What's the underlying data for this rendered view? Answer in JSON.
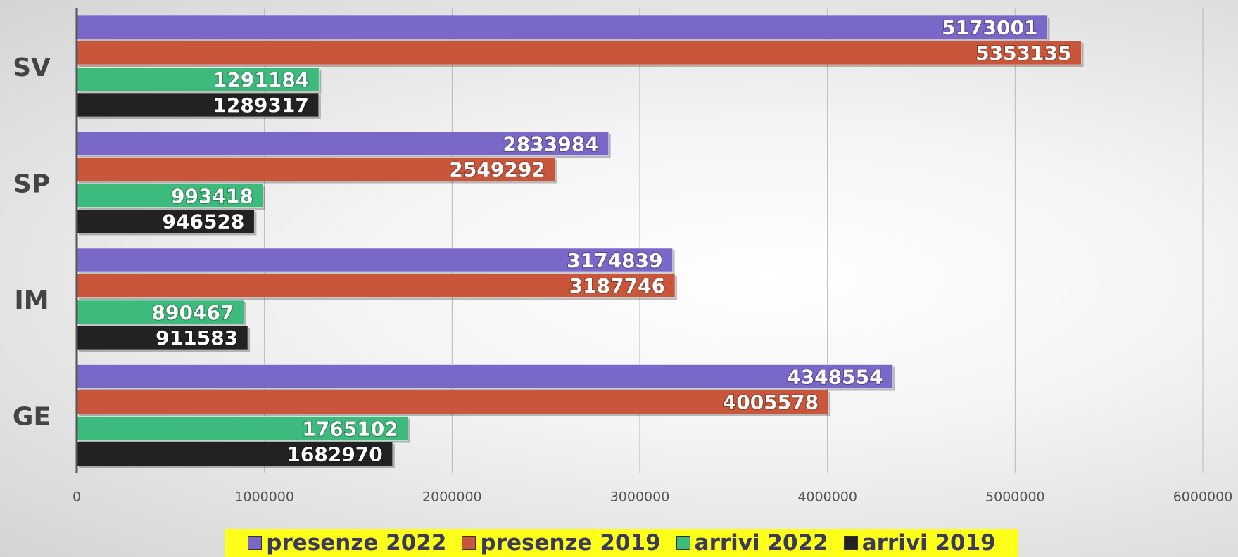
{
  "chart_data": {
    "type": "bar",
    "orientation": "horizontal",
    "categories": [
      "SV",
      "SP",
      "IM",
      "GE"
    ],
    "series": [
      {
        "name": "presenze 2022",
        "color": "#7a68c9",
        "values": [
          5173001,
          2833984,
          3174839,
          4348554
        ]
      },
      {
        "name": "presenze 2019",
        "color": "#c9553a",
        "values": [
          5353135,
          2549292,
          3187746,
          4005578
        ]
      },
      {
        "name": "arrivi 2022",
        "color": "#3dbb7c",
        "values": [
          1291184,
          993418,
          890467,
          1765102
        ]
      },
      {
        "name": "arrivi 2019",
        "color": "#222222",
        "values": [
          1289317,
          946528,
          911583,
          1682970
        ]
      }
    ],
    "xlim": [
      0,
      6000000
    ],
    "xticks": [
      0,
      1000000,
      2000000,
      3000000,
      4000000,
      5000000,
      6000000
    ],
    "grid": true,
    "legend": "bottom",
    "legend_background": "#ffff1a",
    "data_labels": true
  }
}
